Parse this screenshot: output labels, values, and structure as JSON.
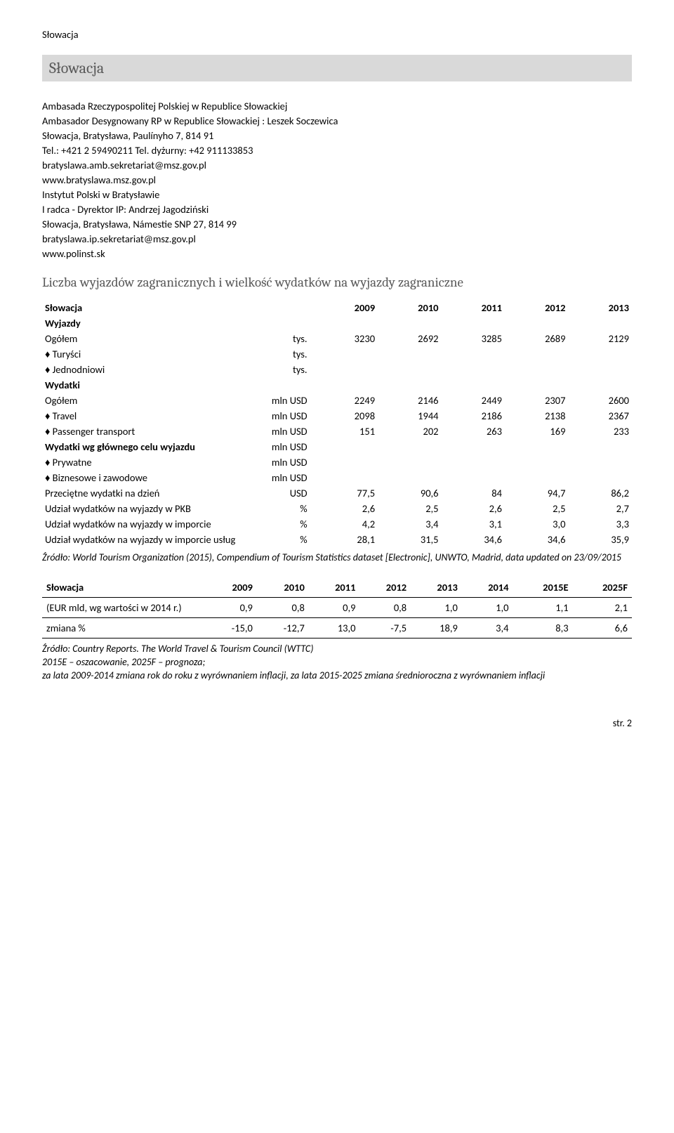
{
  "header_small": "Słowacja",
  "title": "Słowacja",
  "embassy": {
    "line1": "Ambasada Rzeczypospolitej Polskiej w Republice Słowackiej",
    "line2": "Ambasador Desygnowany RP w Republice Słowackiej : Leszek Soczewica",
    "line3": "Słowacja, Bratysława, Paulínyho 7, 814 91",
    "line4": "Tel.: +421 2 59490211 Tel. dyżurny: +42 911133853",
    "line5": "bratyslawa.amb.sekretariat@msz.gov.pl",
    "line6": "www.bratyslawa.msz.gov.pl",
    "line7": "Instytut Polski w Bratysławie",
    "line8": "I radca - Dyrektor IP: Andrzej Jagodziński",
    "line9": "Słowacja, Bratysława, Námestie SNP 27, 814 99",
    "line10": "bratyslawa.ip.sekretariat@msz.gov.pl",
    "line11": "www.polinst.sk"
  },
  "section_heading": "Liczba wyjazdów zagranicznych i wielkość wydatków na wyjazdy zagraniczne",
  "table1": {
    "country": "Słowacja",
    "years": [
      "2009",
      "2010",
      "2011",
      "2012",
      "2013"
    ],
    "rows": [
      {
        "label": "Wyjazdy",
        "bold": true,
        "unit": "",
        "vals": [
          "",
          "",
          "",
          "",
          ""
        ]
      },
      {
        "label": "Ogółem",
        "bold": false,
        "unit": "tys.",
        "vals": [
          "3230",
          "2692",
          "3285",
          "2689",
          "2129"
        ]
      },
      {
        "label": "♦ Turyści",
        "bold": false,
        "unit": "tys.",
        "vals": [
          "",
          "",
          "",
          "",
          ""
        ]
      },
      {
        "label": "♦ Jednodniowi",
        "bold": false,
        "unit": "tys.",
        "vals": [
          "",
          "",
          "",
          "",
          ""
        ]
      },
      {
        "label": "Wydatki",
        "bold": true,
        "unit": "",
        "vals": [
          "",
          "",
          "",
          "",
          ""
        ]
      },
      {
        "label": "Ogółem",
        "bold": false,
        "unit": "mln USD",
        "vals": [
          "2249",
          "2146",
          "2449",
          "2307",
          "2600"
        ]
      },
      {
        "label": "♦ Travel",
        "bold": false,
        "unit": "mln USD",
        "vals": [
          "2098",
          "1944",
          "2186",
          "2138",
          "2367"
        ]
      },
      {
        "label": "♦ Passenger transport",
        "bold": false,
        "unit": "mln USD",
        "vals": [
          "151",
          "202",
          "263",
          "169",
          "233"
        ]
      },
      {
        "label": "Wydatki wg głównego celu wyjazdu",
        "bold": true,
        "unit": "mln USD",
        "vals": [
          "",
          "",
          "",
          "",
          ""
        ]
      },
      {
        "label": "♦ Prywatne",
        "bold": false,
        "unit": "mln USD",
        "vals": [
          "",
          "",
          "",
          "",
          ""
        ]
      },
      {
        "label": "♦ Biznesowe i zawodowe",
        "bold": false,
        "unit": "mln USD",
        "vals": [
          "",
          "",
          "",
          "",
          ""
        ]
      },
      {
        "label": "Przeciętne wydatki na dzień",
        "bold": false,
        "unit": "USD",
        "vals": [
          "77,5",
          "90,6",
          "84",
          "94,7",
          "86,2"
        ]
      },
      {
        "label": "Udział wydatków na wyjazdy w PKB",
        "bold": false,
        "unit": "%",
        "vals": [
          "2,6",
          "2,5",
          "2,6",
          "2,5",
          "2,7"
        ]
      },
      {
        "label": "Udział wydatków na wyjazdy w imporcie",
        "bold": false,
        "unit": "%",
        "vals": [
          "4,2",
          "3,4",
          "3,1",
          "3,0",
          "3,3"
        ]
      },
      {
        "label": "Udział wydatków na wyjazdy w imporcie usług",
        "bold": false,
        "unit": "%",
        "vals": [
          "28,1",
          "31,5",
          "34,6",
          "34,6",
          "35,9"
        ]
      }
    ]
  },
  "source1": "Źródło: World Tourism Organization (2015), Compendium of Tourism Statistics dataset [Electronic], UNWTO, Madrid, data updated on 23/09/2015",
  "table2": {
    "country": "Słowacja",
    "headers": [
      "2009",
      "2010",
      "2011",
      "2012",
      "2013",
      "2014",
      "2015E",
      "2025F"
    ],
    "rows": [
      {
        "label": "(EUR mld, wg wartości w 2014 r.)",
        "vals": [
          "0,9",
          "0,8",
          "0,9",
          "0,8",
          "1,0",
          "1,0",
          "1,1",
          "2,1"
        ]
      },
      {
        "label": "zmiana %",
        "vals": [
          "-15,0",
          "-12,7",
          "13,0",
          "-7,5",
          "18,9",
          "3,4",
          "8,3",
          "6,6"
        ]
      }
    ]
  },
  "source2_line1": "Źródło: Country Reports. The World Travel & Tourism Council (WTTC)",
  "source2_line2": "2015E – oszacowanie, 2025F – prognoza;",
  "source2_line3": "za lata 2009-2014 zmiana rok do roku z wyrównaniem inflacji, za lata 2015-2025 zmiana średnioroczna z wyrównaniem inflacji",
  "page_num": "str. 2"
}
